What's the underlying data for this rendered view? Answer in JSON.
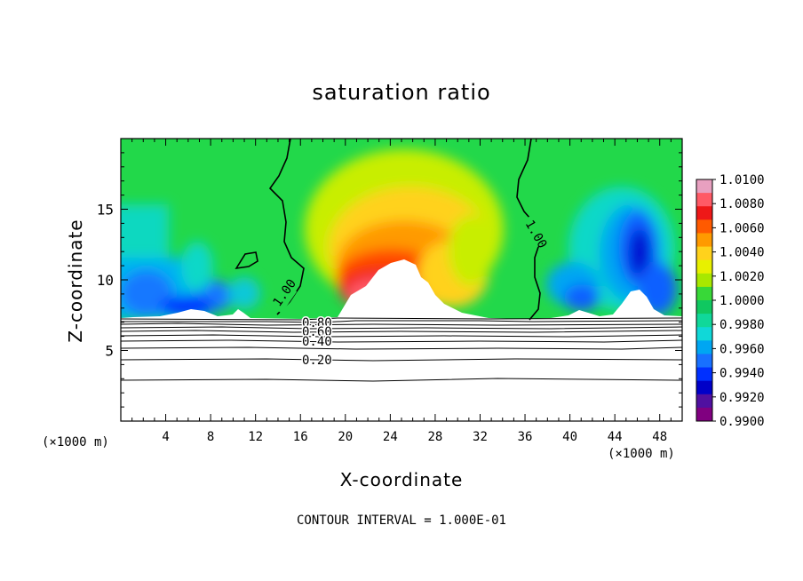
{
  "chart_data": {
    "type": "heatmap",
    "title": "saturation ratio",
    "xlabel": "X-coordinate",
    "ylabel": "Z-coordinate",
    "x_unit": "(×1000 m)",
    "y_unit": "(×1000 m)",
    "xlim": [
      0,
      50
    ],
    "ylim": [
      0,
      20
    ],
    "x_ticks": [
      4,
      8,
      12,
      16,
      20,
      24,
      28,
      32,
      36,
      40,
      44,
      48
    ],
    "y_ticks": [
      5,
      10,
      15
    ],
    "colorbar": {
      "min": 0.99,
      "max": 1.01,
      "labels": [
        "1.0100",
        "1.0080",
        "1.0060",
        "1.0040",
        "1.0020",
        "1.0000",
        "0.9980",
        "0.9960",
        "0.9940",
        "0.9920",
        "0.9900"
      ],
      "colors": [
        "#e8a0c0",
        "#ff5a66",
        "#ee1818",
        "#ff5a00",
        "#ff9a00",
        "#ffd21c",
        "#e8f000",
        "#a8e800",
        "#38d838",
        "#10c860",
        "#10d89a",
        "#10d8d8",
        "#00a6f2",
        "#1870ff",
        "#0030ff",
        "#0000c8",
        "#5010a0",
        "#800080"
      ]
    },
    "contour_labels": [
      "1.00",
      "1.00",
      "1.00",
      "0.80",
      "0.60",
      "0.40",
      "0.20"
    ],
    "footnote": "CONTOUR INTERVAL = 1.000E-01"
  }
}
